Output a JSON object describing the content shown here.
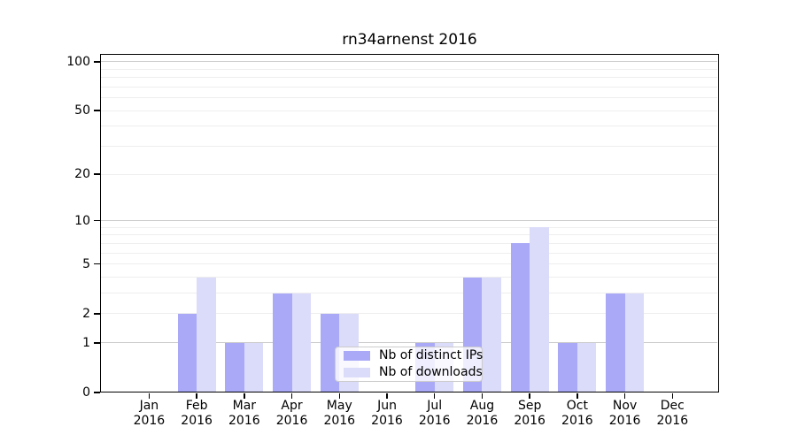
{
  "figure": {
    "title": "rn34arnenst 2016"
  },
  "chart_data": {
    "type": "bar",
    "title": "rn34arnenst 2016",
    "x_categories": [
      "Jan",
      "Feb",
      "Mar",
      "Apr",
      "May",
      "Jun",
      "Jul",
      "Aug",
      "Sep",
      "Oct",
      "Nov",
      "Dec"
    ],
    "x_year_label": "2016",
    "series": [
      {
        "name": "Nb of distinct IPs",
        "color": "#a9a9f7",
        "values": [
          0,
          2,
          1,
          3,
          2,
          0,
          1,
          4,
          7,
          1,
          3,
          0
        ]
      },
      {
        "name": "Nb of downloads",
        "color": "#dbdbfa",
        "values": [
          0,
          4,
          1,
          3,
          2,
          0,
          1,
          4,
          9,
          1,
          3,
          0
        ]
      }
    ],
    "y_axis": {
      "scale": "log1p",
      "ticks": [
        0,
        1,
        2,
        5,
        10,
        20,
        50,
        100
      ],
      "min": 0,
      "max": 111
    },
    "grid": {
      "major_lines": [
        1,
        10,
        100
      ],
      "minor_lines": [
        2,
        3,
        4,
        5,
        6,
        7,
        8,
        9,
        20,
        30,
        40,
        50,
        60,
        70,
        80,
        90
      ],
      "major_color": "#cccccc",
      "minor_color": "#eeeeee"
    },
    "legend_position": "inside lower center",
    "xlabel": "",
    "ylabel": ""
  }
}
